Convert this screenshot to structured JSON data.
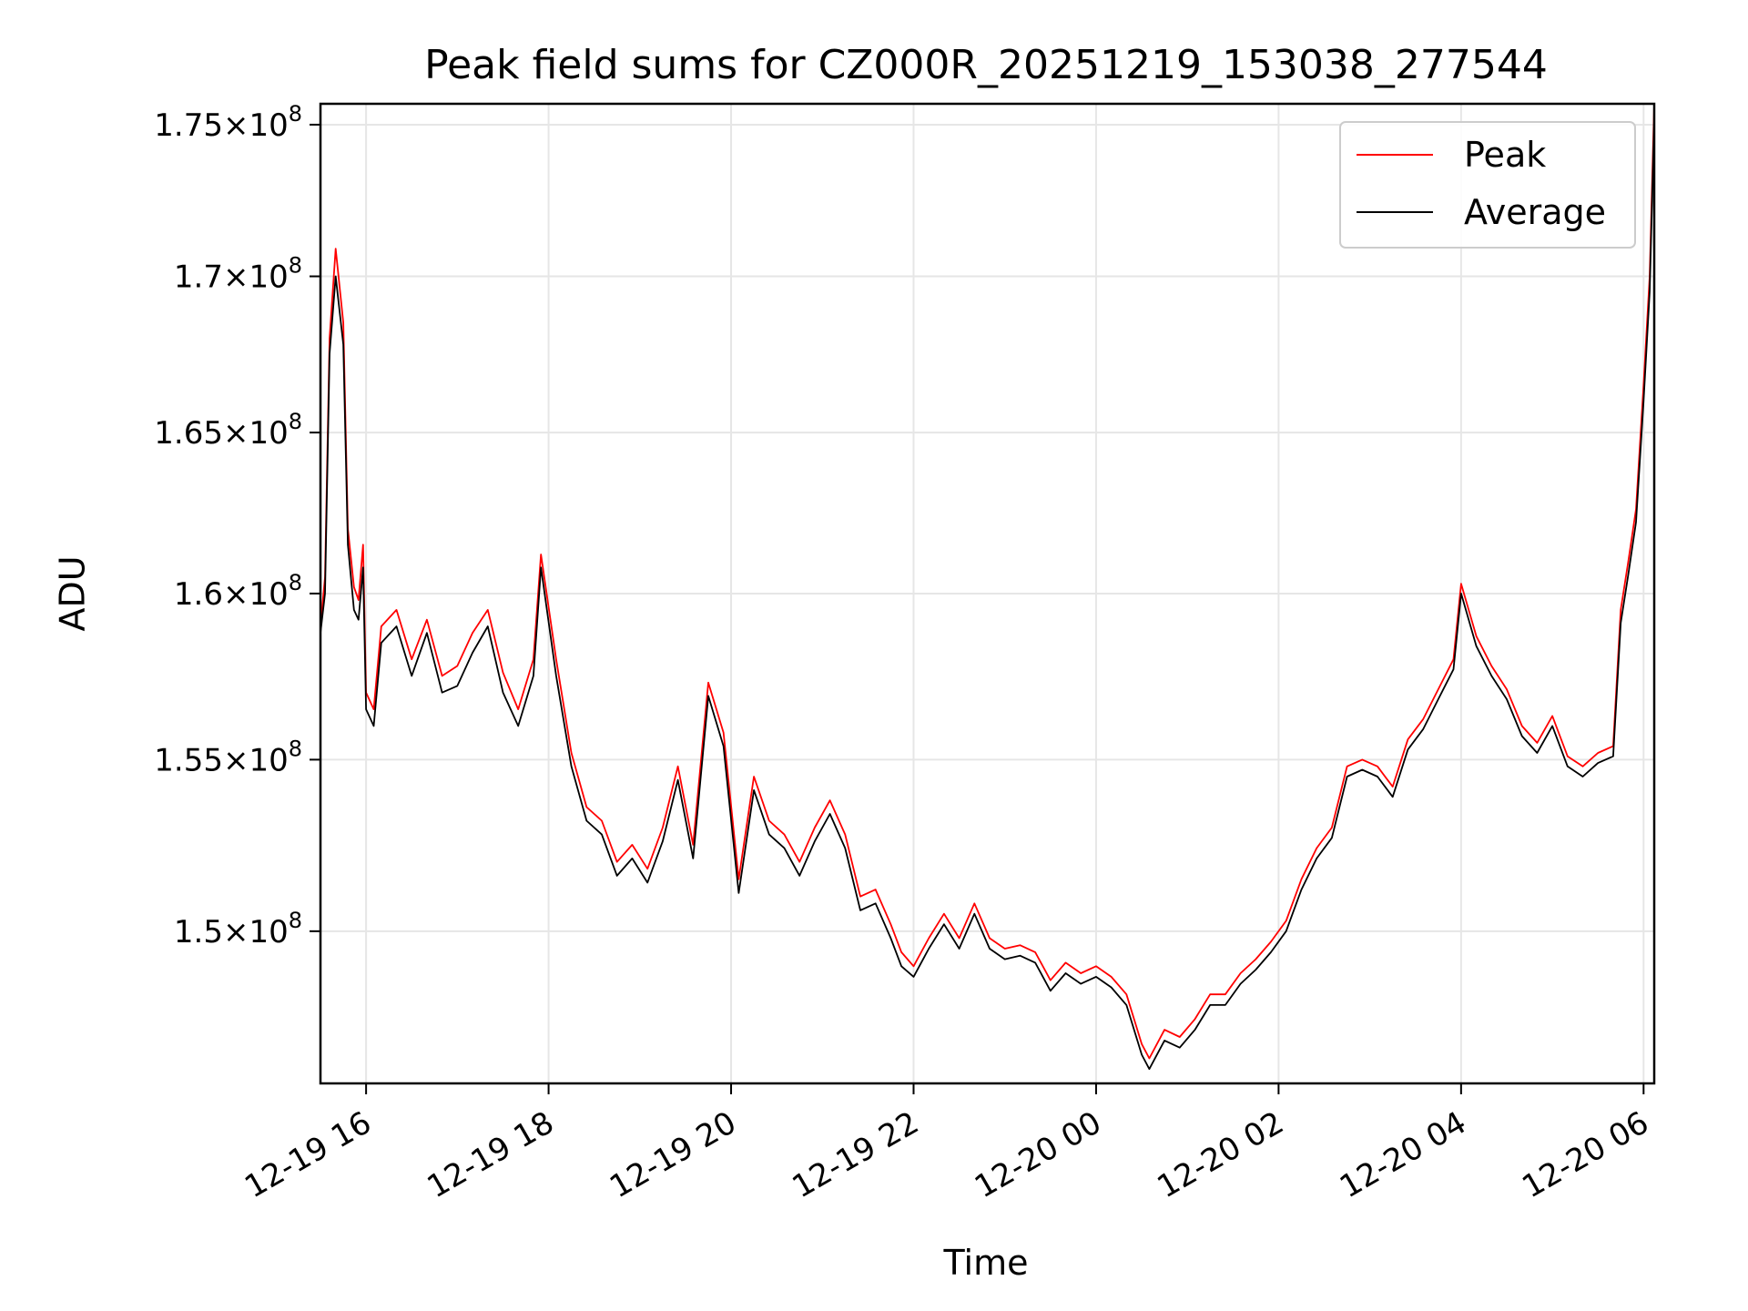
{
  "chart_data": {
    "type": "line",
    "title": "Peak field sums for CZ000R_20251219_153038_277544",
    "xlabel": "Time",
    "ylabel": "ADU",
    "x_range": [
      "2025-12-19 15:30",
      "2025-12-20 06:07"
    ],
    "ylim": [
      145700000,
      175700000
    ],
    "y_scale": "log",
    "grid": true,
    "legend_position": "upper right",
    "x_ticks": [
      {
        "value": "2025-12-19 16:00",
        "label": "12-19 16"
      },
      {
        "value": "2025-12-19 18:00",
        "label": "12-19 18"
      },
      {
        "value": "2025-12-19 20:00",
        "label": "12-19 20"
      },
      {
        "value": "2025-12-19 22:00",
        "label": "12-19 22"
      },
      {
        "value": "2025-12-20 00:00",
        "label": "12-20 00"
      },
      {
        "value": "2025-12-20 02:00",
        "label": "12-20 02"
      },
      {
        "value": "2025-12-20 04:00",
        "label": "12-20 04"
      },
      {
        "value": "2025-12-20 06:00",
        "label": "12-20 06"
      }
    ],
    "y_ticks": [
      {
        "value": 150000000,
        "mantissa": "1.5",
        "exp": "8"
      },
      {
        "value": 155000000,
        "mantissa": "1.55",
        "exp": "8"
      },
      {
        "value": 160000000,
        "mantissa": "1.6",
        "exp": "8"
      },
      {
        "value": 165000000,
        "mantissa": "1.65",
        "exp": "8"
      },
      {
        "value": 170000000,
        "mantissa": "1.7",
        "exp": "8"
      },
      {
        "value": 175000000,
        "mantissa": "1.75",
        "exp": "8"
      }
    ],
    "series": [
      {
        "name": "Peak",
        "color": "#ff0000",
        "x": [
          "2025-12-19 15:30",
          "2025-12-19 15:33",
          "2025-12-19 15:36",
          "2025-12-19 15:40",
          "2025-12-19 15:45",
          "2025-12-19 15:48",
          "2025-12-19 15:52",
          "2025-12-19 15:55",
          "2025-12-19 15:58",
          "2025-12-19 16:00",
          "2025-12-19 16:05",
          "2025-12-19 16:10",
          "2025-12-19 16:20",
          "2025-12-19 16:30",
          "2025-12-19 16:40",
          "2025-12-19 16:50",
          "2025-12-19 17:00",
          "2025-12-19 17:10",
          "2025-12-19 17:20",
          "2025-12-19 17:30",
          "2025-12-19 17:40",
          "2025-12-19 17:50",
          "2025-12-19 17:55",
          "2025-12-19 18:05",
          "2025-12-19 18:15",
          "2025-12-19 18:25",
          "2025-12-19 18:35",
          "2025-12-19 18:45",
          "2025-12-19 18:55",
          "2025-12-19 19:05",
          "2025-12-19 19:15",
          "2025-12-19 19:25",
          "2025-12-19 19:35",
          "2025-12-19 19:45",
          "2025-12-19 19:55",
          "2025-12-19 20:05",
          "2025-12-19 20:15",
          "2025-12-19 20:25",
          "2025-12-19 20:35",
          "2025-12-19 20:45",
          "2025-12-19 20:55",
          "2025-12-19 21:05",
          "2025-12-19 21:15",
          "2025-12-19 21:25",
          "2025-12-19 21:35",
          "2025-12-19 21:45",
          "2025-12-19 21:52",
          "2025-12-19 22:00",
          "2025-12-19 22:10",
          "2025-12-19 22:20",
          "2025-12-19 22:30",
          "2025-12-19 22:40",
          "2025-12-19 22:50",
          "2025-12-19 23:00",
          "2025-12-19 23:10",
          "2025-12-19 23:20",
          "2025-12-19 23:30",
          "2025-12-19 23:40",
          "2025-12-19 23:50",
          "2025-12-20 00:00",
          "2025-12-20 00:10",
          "2025-12-20 00:20",
          "2025-12-20 00:30",
          "2025-12-20 00:35",
          "2025-12-20 00:45",
          "2025-12-20 00:55",
          "2025-12-20 01:05",
          "2025-12-20 01:15",
          "2025-12-20 01:25",
          "2025-12-20 01:35",
          "2025-12-20 01:45",
          "2025-12-20 01:55",
          "2025-12-20 02:05",
          "2025-12-20 02:15",
          "2025-12-20 02:25",
          "2025-12-20 02:35",
          "2025-12-20 02:45",
          "2025-12-20 02:55",
          "2025-12-20 03:05",
          "2025-12-20 03:15",
          "2025-12-20 03:25",
          "2025-12-20 03:35",
          "2025-12-20 03:45",
          "2025-12-20 03:55",
          "2025-12-20 04:00",
          "2025-12-20 04:10",
          "2025-12-20 04:20",
          "2025-12-20 04:30",
          "2025-12-20 04:40",
          "2025-12-20 04:50",
          "2025-12-20 05:00",
          "2025-12-20 05:10",
          "2025-12-20 05:20",
          "2025-12-20 05:30",
          "2025-12-20 05:40",
          "2025-12-20 05:45",
          "2025-12-20 05:50",
          "2025-12-20 05:55",
          "2025-12-20 06:00",
          "2025-12-20 06:04",
          "2025-12-20 06:07"
        ],
        "y": [
          159000000,
          160500000,
          168000000,
          170900000,
          168500000,
          162000000,
          160200000,
          159800000,
          161500000,
          157000000,
          156500000,
          159000000,
          159500000,
          158000000,
          159200000,
          157500000,
          157800000,
          158800000,
          159500000,
          157600000,
          156500000,
          158000000,
          161200000,
          158000000,
          155200000,
          153600000,
          153200000,
          152000000,
          152500000,
          151800000,
          153000000,
          154800000,
          152500000,
          157300000,
          155800000,
          151500000,
          154500000,
          153200000,
          152800000,
          152000000,
          153000000,
          153800000,
          152800000,
          151000000,
          151200000,
          150200000,
          149400000,
          149000000,
          149800000,
          150500000,
          149800000,
          150800000,
          149800000,
          149500000,
          149600000,
          149400000,
          148600000,
          149100000,
          148800000,
          149000000,
          148700000,
          148200000,
          146800000,
          146400000,
          147200000,
          147000000,
          147500000,
          148200000,
          148200000,
          148800000,
          149200000,
          149700000,
          150300000,
          151500000,
          152400000,
          153000000,
          154800000,
          155000000,
          154800000,
          154200000,
          155600000,
          156200000,
          157100000,
          158000000,
          160300000,
          158700000,
          157800000,
          157100000,
          156000000,
          155500000,
          156300000,
          155100000,
          154800000,
          155200000,
          155400000,
          159500000,
          161000000,
          162600000,
          166500000,
          170000000,
          175700000
        ]
      },
      {
        "name": "Average",
        "color": "#000000",
        "x": [
          "2025-12-19 15:30",
          "2025-12-19 15:33",
          "2025-12-19 15:36",
          "2025-12-19 15:40",
          "2025-12-19 15:45",
          "2025-12-19 15:48",
          "2025-12-19 15:52",
          "2025-12-19 15:55",
          "2025-12-19 15:58",
          "2025-12-19 16:00",
          "2025-12-19 16:05",
          "2025-12-19 16:10",
          "2025-12-19 16:20",
          "2025-12-19 16:30",
          "2025-12-19 16:40",
          "2025-12-19 16:50",
          "2025-12-19 17:00",
          "2025-12-19 17:10",
          "2025-12-19 17:20",
          "2025-12-19 17:30",
          "2025-12-19 17:40",
          "2025-12-19 17:50",
          "2025-12-19 17:55",
          "2025-12-19 18:05",
          "2025-12-19 18:15",
          "2025-12-19 18:25",
          "2025-12-19 18:35",
          "2025-12-19 18:45",
          "2025-12-19 18:55",
          "2025-12-19 19:05",
          "2025-12-19 19:15",
          "2025-12-19 19:25",
          "2025-12-19 19:35",
          "2025-12-19 19:45",
          "2025-12-19 19:55",
          "2025-12-19 20:05",
          "2025-12-19 20:15",
          "2025-12-19 20:25",
          "2025-12-19 20:35",
          "2025-12-19 20:45",
          "2025-12-19 20:55",
          "2025-12-19 21:05",
          "2025-12-19 21:15",
          "2025-12-19 21:25",
          "2025-12-19 21:35",
          "2025-12-19 21:45",
          "2025-12-19 21:52",
          "2025-12-19 22:00",
          "2025-12-19 22:10",
          "2025-12-19 22:20",
          "2025-12-19 22:30",
          "2025-12-19 22:40",
          "2025-12-19 22:50",
          "2025-12-19 23:00",
          "2025-12-19 23:10",
          "2025-12-19 23:20",
          "2025-12-19 23:30",
          "2025-12-19 23:40",
          "2025-12-19 23:50",
          "2025-12-20 00:00",
          "2025-12-20 00:10",
          "2025-12-20 00:20",
          "2025-12-20 00:30",
          "2025-12-20 00:35",
          "2025-12-20 00:45",
          "2025-12-20 00:55",
          "2025-12-20 01:05",
          "2025-12-20 01:15",
          "2025-12-20 01:25",
          "2025-12-20 01:35",
          "2025-12-20 01:45",
          "2025-12-20 01:55",
          "2025-12-20 02:05",
          "2025-12-20 02:15",
          "2025-12-20 02:25",
          "2025-12-20 02:35",
          "2025-12-20 02:45",
          "2025-12-20 02:55",
          "2025-12-20 03:05",
          "2025-12-20 03:15",
          "2025-12-20 03:25",
          "2025-12-20 03:35",
          "2025-12-20 03:45",
          "2025-12-20 03:55",
          "2025-12-20 04:00",
          "2025-12-20 04:10",
          "2025-12-20 04:20",
          "2025-12-20 04:30",
          "2025-12-20 04:40",
          "2025-12-20 04:50",
          "2025-12-20 05:00",
          "2025-12-20 05:10",
          "2025-12-20 05:20",
          "2025-12-20 05:30",
          "2025-12-20 05:40",
          "2025-12-20 05:45",
          "2025-12-20 05:50",
          "2025-12-20 05:55",
          "2025-12-20 06:00",
          "2025-12-20 06:04",
          "2025-12-20 06:07"
        ],
        "y": [
          158800000,
          160000000,
          167500000,
          170000000,
          167800000,
          161500000,
          159500000,
          159200000,
          160800000,
          156500000,
          156000000,
          158500000,
          159000000,
          157500000,
          158800000,
          157000000,
          157200000,
          158200000,
          159000000,
          157000000,
          156000000,
          157500000,
          160800000,
          157500000,
          154800000,
          153200000,
          152800000,
          151600000,
          152100000,
          151400000,
          152600000,
          154400000,
          152100000,
          156900000,
          155400000,
          151100000,
          154100000,
          152800000,
          152400000,
          151600000,
          152600000,
          153400000,
          152400000,
          150600000,
          150800000,
          149800000,
          149000000,
          148700000,
          149500000,
          150200000,
          149500000,
          150500000,
          149500000,
          149200000,
          149300000,
          149100000,
          148300000,
          148800000,
          148500000,
          148700000,
          148400000,
          147900000,
          146500000,
          146100000,
          146900000,
          146700000,
          147200000,
          147900000,
          147900000,
          148500000,
          148900000,
          149400000,
          150000000,
          151200000,
          152100000,
          152700000,
          154500000,
          154700000,
          154500000,
          153900000,
          155300000,
          155900000,
          156800000,
          157700000,
          160000000,
          158400000,
          157500000,
          156800000,
          155700000,
          155200000,
          156000000,
          154800000,
          154500000,
          154900000,
          155100000,
          159100000,
          160600000,
          162200000,
          166000000,
          169500000,
          175200000
        ]
      }
    ]
  }
}
